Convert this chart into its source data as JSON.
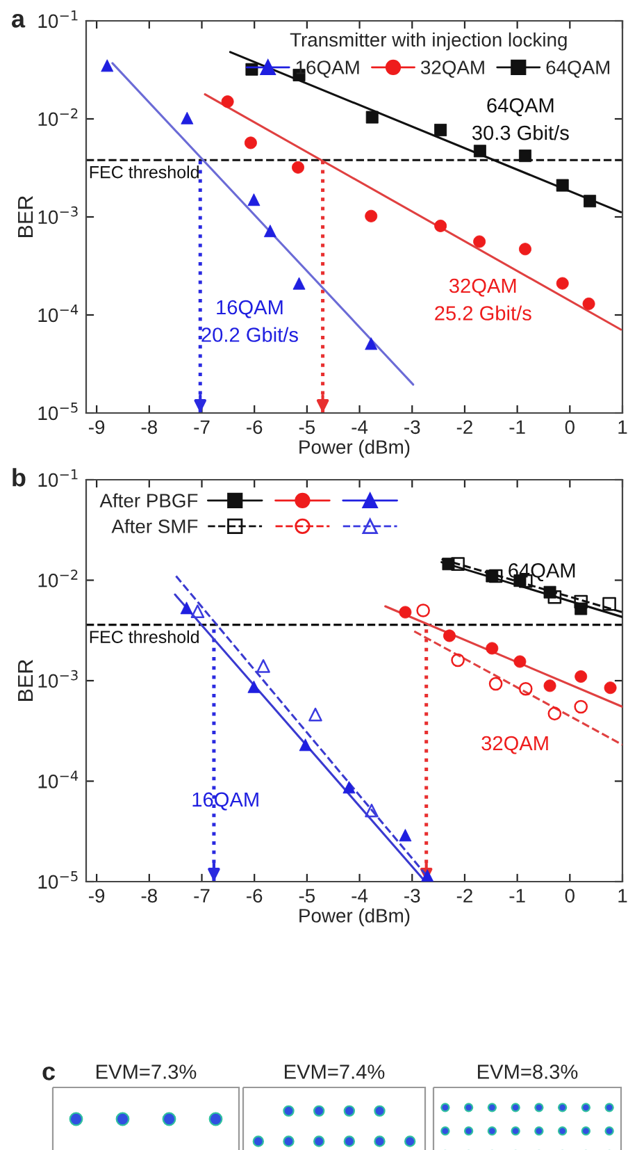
{
  "chart_data": [
    {
      "type": "scatter",
      "xlabel": "Power (dBm)",
      "ylabel": "BER",
      "log": "y",
      "xlim": [
        -9.2,
        1.0
      ],
      "xticks": [
        -9,
        -8,
        -7,
        -6,
        -5,
        -4,
        -3,
        -2,
        -1,
        0,
        1
      ],
      "ylim": [
        1e-05,
        0.1
      ],
      "yticks": [
        {
          "value": 1e-05,
          "label": "10$^{−5}$"
        },
        {
          "value": 0.0001,
          "label": "10$^{−4}$"
        },
        {
          "value": 0.001,
          "label": "10$^{−3}$"
        },
        {
          "value": 0.01,
          "label": "10$^{−2}$"
        },
        {
          "value": 0.1,
          "label": "10$^{−1}$"
        }
      ],
      "legend": "top right",
      "legend_title": "Transmitter with injection locking",
      "series": [
        {
          "name": "16QAM",
          "type": "scatter",
          "marker": "triangle",
          "color": "#1f1fe0",
          "x": [
            -8.8,
            -7.28,
            -6.01,
            -5.7,
            -5.15,
            -3.78
          ],
          "values": [
            0.035,
            0.0102,
            0.0015,
            0.00072,
            0.00021,
            5.1e-05
          ]
        },
        {
          "name": "32QAM",
          "type": "scatter",
          "marker": "circle",
          "color": "#ee1c1c",
          "x": [
            -6.51,
            -6.07,
            -5.17,
            -3.78,
            -2.46,
            -1.72,
            -0.85,
            -0.14,
            0.36
          ],
          "values": [
            0.015,
            0.0057,
            0.0032,
            0.00102,
            0.00081,
            0.00056,
            0.00047,
            0.00021,
            0.00013
          ]
        },
        {
          "name": "64QAM",
          "type": "scatter",
          "marker": "square",
          "color": "#111111",
          "x": [
            -6.05,
            -5.15,
            -3.76,
            -2.46,
            -1.71,
            -0.85,
            -0.14,
            0.38
          ],
          "values": [
            0.032,
            0.028,
            0.0104,
            0.0077,
            0.0047,
            0.0042,
            0.0021,
            0.00145
          ]
        },
        {
          "type": "line",
          "line_style": "solid",
          "marker": "none",
          "color": "#6b6bd6",
          "x": [
            -8.7,
            -2.98
          ],
          "values": [
            0.037,
            1.95e-05
          ]
        },
        {
          "type": "line",
          "line_style": "solid",
          "marker": "none",
          "color": "#e04040",
          "x": [
            -6.94,
            0.97
          ],
          "values": [
            0.0178,
            7.1e-05
          ]
        },
        {
          "type": "line",
          "line_style": "solid",
          "marker": "none",
          "color": "#111111",
          "x": [
            -6.46,
            0.97
          ],
          "values": [
            0.048,
            0.00112
          ]
        }
      ],
      "ref_lines": [
        {
          "axis": "y",
          "value": 0.0038,
          "label": "FEC threshold",
          "color": "#111111",
          "line_style": "dashed"
        },
        {
          "axis": "x",
          "value": -7.03,
          "color": "#2a2ae0",
          "line_style": "dotted"
        },
        {
          "axis": "x",
          "value": -4.7,
          "color": "#e83030",
          "line_style": "dotted"
        }
      ],
      "annotations": [
        "a",
        "16QAM",
        "32QAM",
        "64QAM",
        "20.2 Gbit/s",
        "25.2 Gbit/s",
        "30.3 Gbit/s"
      ]
    },
    {
      "type": "scatter",
      "xlabel": "Power (dBm)",
      "ylabel": "BER",
      "log": "y",
      "xlim": [
        -9.2,
        1.0
      ],
      "xticks": [
        -9,
        -8,
        -7,
        -6,
        -5,
        -4,
        -3,
        -2,
        -1,
        0,
        1
      ],
      "ylim": [
        1e-05,
        0.1
      ],
      "yticks": [
        {
          "value": 1e-05,
          "label": "10$^{−5}$"
        },
        {
          "value": 0.0001,
          "label": "10$^{−4}$"
        },
        {
          "value": 0.001,
          "label": "10$^{−3}$"
        },
        {
          "value": 0.01,
          "label": "10$^{−2}$"
        },
        {
          "value": 0.1,
          "label": "10$^{−1}$"
        }
      ],
      "legend": "top left",
      "series": [
        {
          "name": "After PBGF",
          "type": "scatter",
          "marker": "square",
          "color": "#111111",
          "x": [
            -2.31,
            -1.48,
            -0.95,
            -0.38,
            0.21
          ],
          "values": [
            0.0145,
            0.011,
            0.0099,
            0.0076,
            0.0052
          ]
        },
        {
          "type": "scatter",
          "marker": "circle",
          "color": "#ee1c1c",
          "x": [
            -3.13,
            -2.29,
            -1.48,
            -0.95,
            -0.38,
            0.21,
            0.77
          ],
          "values": [
            0.0048,
            0.0028,
            0.0021,
            0.00155,
            0.00089,
            0.0011,
            0.00085
          ]
        },
        {
          "type": "scatter",
          "marker": "triangle",
          "color": "#1f1fe0",
          "x": [
            -7.29,
            -6.01,
            -5.03,
            -4.2,
            -3.13,
            -2.71
          ],
          "values": [
            0.0053,
            0.00087,
            0.00023,
            8.7e-05,
            2.9e-05,
            1.15e-05
          ]
        },
        {
          "name": "After SMF",
          "type": "scatter",
          "marker": "square",
          "line_style": "dashed",
          "color": "#111111",
          "x": [
            -2.13,
            -1.41,
            -0.84,
            -0.29,
            0.21,
            0.75
          ],
          "values": [
            0.0145,
            0.011,
            0.0098,
            0.0068,
            0.0061,
            0.0058
          ]
        },
        {
          "type": "scatter",
          "marker": "circle",
          "line_style": "dashed",
          "color": "#ee1c1c",
          "x": [
            -2.79,
            -2.13,
            -1.41,
            -0.84,
            -0.29,
            0.21
          ],
          "values": [
            0.005,
            0.0016,
            0.00093,
            0.00083,
            0.00047,
            0.00055
          ]
        },
        {
          "type": "scatter",
          "marker": "triangle",
          "line_style": "dashed",
          "color": "#3a3ae0",
          "x": [
            -7.08,
            -5.83,
            -4.84,
            -3.77
          ],
          "values": [
            0.0049,
            0.0014,
            0.00046,
            5.1e-05
          ]
        },
        {
          "type": "line",
          "line_style": "solid",
          "marker": "none",
          "color": "#111111",
          "x": [
            -2.44,
            1.0
          ],
          "values": [
            0.0151,
            0.0043
          ]
        },
        {
          "type": "line",
          "line_style": "dashed",
          "marker": "none",
          "color": "#111111",
          "x": [
            -2.44,
            1.0
          ],
          "values": [
            0.0162,
            0.0048
          ]
        },
        {
          "type": "line",
          "line_style": "solid",
          "marker": "none",
          "color": "#e04040",
          "x": [
            -3.51,
            1.0
          ],
          "values": [
            0.0055,
            0.00055
          ]
        },
        {
          "type": "line",
          "line_style": "dashed",
          "marker": "none",
          "color": "#e04040",
          "x": [
            -2.96,
            1.0
          ],
          "values": [
            0.0031,
            0.00023
          ]
        },
        {
          "type": "line",
          "line_style": "solid",
          "marker": "none",
          "color": "#3a3ad0",
          "x": [
            -7.51,
            -2.75
          ],
          "values": [
            0.0072,
            1e-05
          ]
        },
        {
          "type": "line",
          "line_style": "dashed",
          "marker": "none",
          "color": "#3a3ad0",
          "x": [
            -7.49,
            -2.63
          ],
          "values": [
            0.011,
            1e-05
          ]
        }
      ],
      "ref_lines": [
        {
          "axis": "y",
          "value": 0.0036,
          "label": "FEC threshold",
          "color": "#111111",
          "line_style": "dashed"
        },
        {
          "axis": "x",
          "value": -6.77,
          "color": "#2a2ae0",
          "line_style": "dotted"
        },
        {
          "axis": "x",
          "value": -2.73,
          "color": "#e83030",
          "line_style": "dotted"
        }
      ],
      "annotations": [
        "b",
        "64QAM",
        "32QAM",
        "16QAM"
      ]
    },
    {
      "type": "other",
      "annotations": [
        "c",
        "EVM=7.3%",
        "EVM=7.4%",
        "EVM=8.3%"
      ]
    }
  ]
}
